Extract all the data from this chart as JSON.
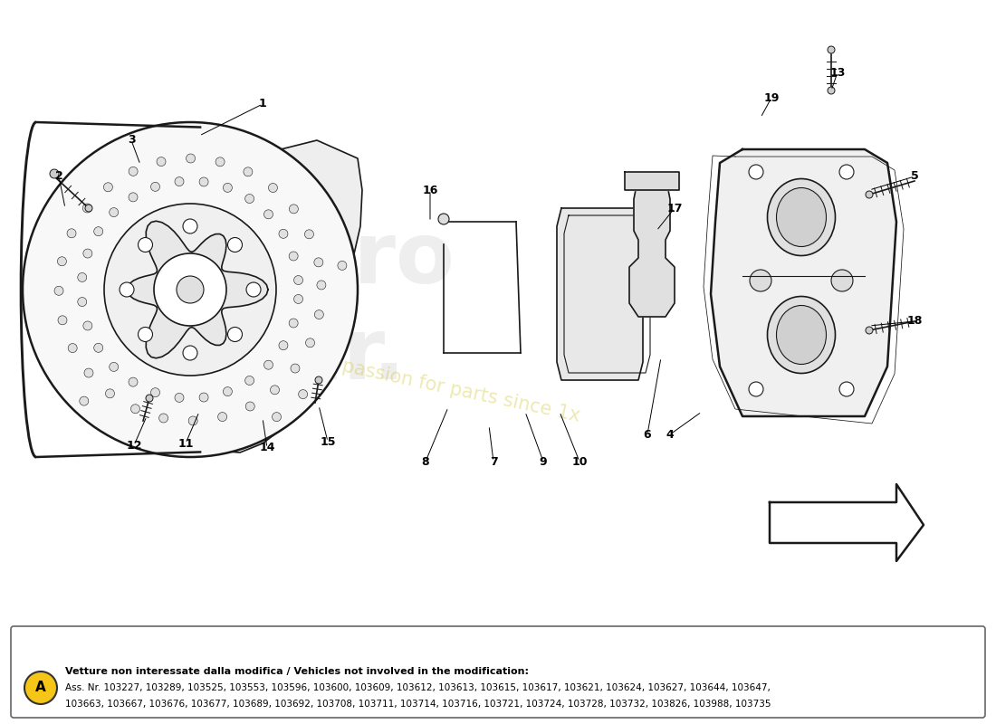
{
  "fig_width": 11.0,
  "fig_height": 8.0,
  "dpi": 100,
  "background_color": "#ffffff",
  "line_color": "#1a1a1a",
  "footnote_circle_color": "#f5c518",
  "footnote_circle_text": "A",
  "footnote_bold_text": "Vetture non interessate dalla modifica / Vehicles not involved in the modification:",
  "footnote_text_line1": "Ass. Nr. 103227, 103289, 103525, 103553, 103596, 103600, 103609, 103612, 103613, 103615, 103617, 103621, 103624, 103627, 103644, 103647,",
  "footnote_text_line2": "103663, 103667, 103676, 103677, 103689, 103692, 103708, 103711, 103714, 103716, 103721, 103724, 103728, 103732, 103826, 103988, 103735",
  "watermark_color": "#c8b800",
  "watermark_alpha": 0.3
}
